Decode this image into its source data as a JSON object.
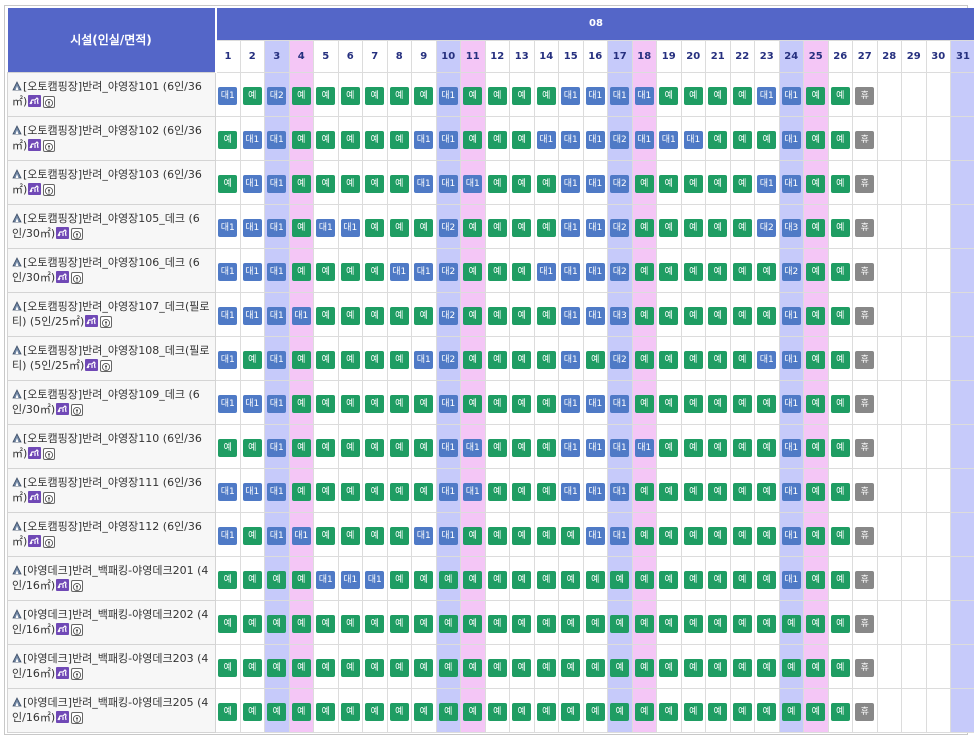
{
  "header": {
    "facility_title": "시설(인실/면적)",
    "month": "08"
  },
  "days": [
    "1",
    "2",
    "3",
    "4",
    "5",
    "6",
    "7",
    "8",
    "9",
    "10",
    "11",
    "12",
    "13",
    "14",
    "15",
    "16",
    "17",
    "18",
    "19",
    "20",
    "21",
    "22",
    "23",
    "24",
    "25",
    "26",
    "27",
    "28",
    "29",
    "30",
    "31"
  ],
  "day_types": [
    "n",
    "n",
    "sat",
    "sun",
    "n",
    "n",
    "n",
    "n",
    "n",
    "sat",
    "sun",
    "n",
    "n",
    "n",
    "n",
    "n",
    "sat",
    "sun",
    "n",
    "n",
    "n",
    "n",
    "n",
    "sat",
    "sun",
    "n",
    "n",
    "n",
    "n",
    "n",
    "sat"
  ],
  "colors": {
    "header": "#5466c8",
    "saturday": "#c6cafa",
    "sunday": "#f4c6f6",
    "available": "#1f9d63",
    "waitlist": "#4f7ac6",
    "closed": "#888888"
  },
  "icons": {
    "facility": "tent-icon",
    "pet": "pet-allowed-icon",
    "location": "map-pin-icon"
  },
  "rows": [
    {
      "name": "[오토캠핑장]반려_야영장101 (6인/36㎡)",
      "cells": [
        "대1",
        "예",
        "대2",
        "예",
        "예",
        "예",
        "예",
        "예",
        "예",
        "대1",
        "예",
        "예",
        "예",
        "예",
        "대1",
        "대1",
        "대1",
        "대1",
        "예",
        "예",
        "예",
        "예",
        "대1",
        "대1",
        "예",
        "예",
        "휴",
        "",
        "",
        "",
        ""
      ]
    },
    {
      "name": "[오토캠핑장]반려_야영장102 (6인/36㎡)",
      "cells": [
        "예",
        "대1",
        "대1",
        "예",
        "예",
        "예",
        "예",
        "예",
        "대1",
        "대1",
        "예",
        "예",
        "예",
        "대1",
        "대1",
        "대1",
        "대2",
        "대1",
        "대1",
        "대1",
        "예",
        "예",
        "예",
        "대1",
        "예",
        "예",
        "휴",
        "",
        "",
        "",
        ""
      ]
    },
    {
      "name": "[오토캠핑장]반려_야영장103 (6인/36㎡)",
      "cells": [
        "예",
        "대1",
        "대1",
        "예",
        "예",
        "예",
        "예",
        "예",
        "대1",
        "대1",
        "대1",
        "예",
        "예",
        "예",
        "대1",
        "대1",
        "대2",
        "예",
        "예",
        "예",
        "예",
        "예",
        "대1",
        "대1",
        "예",
        "예",
        "휴",
        "",
        "",
        "",
        ""
      ]
    },
    {
      "name": "[오토캠핑장]반려_야영장105_데크 (6인/30㎡)",
      "cells": [
        "대1",
        "대1",
        "대1",
        "예",
        "대1",
        "대1",
        "예",
        "예",
        "예",
        "대2",
        "예",
        "예",
        "예",
        "예",
        "대1",
        "대1",
        "대2",
        "예",
        "예",
        "예",
        "예",
        "예",
        "대2",
        "대3",
        "예",
        "예",
        "휴",
        "",
        "",
        "",
        ""
      ]
    },
    {
      "name": "[오토캠핑장]반려_야영장106_데크 (6인/30㎡)",
      "cells": [
        "대1",
        "대1",
        "대1",
        "예",
        "예",
        "예",
        "예",
        "대1",
        "대1",
        "대2",
        "예",
        "예",
        "예",
        "대1",
        "대1",
        "대1",
        "대2",
        "예",
        "예",
        "예",
        "예",
        "예",
        "예",
        "대2",
        "예",
        "예",
        "휴",
        "",
        "",
        "",
        ""
      ]
    },
    {
      "name": "[오토캠핑장]반려_야영장107_데크(필로티) (5인/25㎡)",
      "cells": [
        "대1",
        "대1",
        "대1",
        "대1",
        "예",
        "예",
        "예",
        "예",
        "예",
        "대2",
        "예",
        "예",
        "예",
        "예",
        "대1",
        "대1",
        "대3",
        "예",
        "예",
        "예",
        "예",
        "예",
        "예",
        "대1",
        "예",
        "예",
        "휴",
        "",
        "",
        "",
        ""
      ]
    },
    {
      "name": "[오토캠핑장]반려_야영장108_데크(필로티) (5인/25㎡)",
      "cells": [
        "대1",
        "예",
        "대1",
        "예",
        "예",
        "예",
        "예",
        "예",
        "대1",
        "대2",
        "예",
        "예",
        "예",
        "예",
        "대1",
        "예",
        "대2",
        "예",
        "예",
        "예",
        "예",
        "예",
        "대1",
        "대1",
        "예",
        "예",
        "휴",
        "",
        "",
        "",
        ""
      ]
    },
    {
      "name": "[오토캠핑장]반려_야영장109_데크 (6인/30㎡)",
      "cells": [
        "대1",
        "대1",
        "대1",
        "예",
        "예",
        "예",
        "예",
        "예",
        "예",
        "대1",
        "예",
        "예",
        "예",
        "예",
        "대1",
        "대1",
        "대1",
        "예",
        "예",
        "예",
        "예",
        "예",
        "예",
        "대1",
        "예",
        "예",
        "휴",
        "",
        "",
        "",
        ""
      ]
    },
    {
      "name": "[오토캠핑장]반려_야영장110 (6인/36㎡)",
      "cells": [
        "예",
        "예",
        "대1",
        "예",
        "예",
        "예",
        "예",
        "예",
        "예",
        "대1",
        "대1",
        "예",
        "예",
        "예",
        "대1",
        "대1",
        "대1",
        "대1",
        "예",
        "예",
        "예",
        "예",
        "예",
        "대1",
        "예",
        "예",
        "휴",
        "",
        "",
        "",
        ""
      ]
    },
    {
      "name": "[오토캠핑장]반려_야영장111 (6인/36㎡)",
      "cells": [
        "대1",
        "대1",
        "대1",
        "예",
        "예",
        "예",
        "예",
        "예",
        "예",
        "대1",
        "대1",
        "예",
        "예",
        "예",
        "대1",
        "대1",
        "대1",
        "예",
        "예",
        "예",
        "예",
        "예",
        "예",
        "대1",
        "예",
        "예",
        "휴",
        "",
        "",
        "",
        ""
      ]
    },
    {
      "name": "[오토캠핑장]반려_야영장112 (6인/36㎡)",
      "cells": [
        "대1",
        "예",
        "대1",
        "대1",
        "예",
        "예",
        "예",
        "예",
        "대1",
        "대1",
        "예",
        "예",
        "예",
        "예",
        "예",
        "대1",
        "대1",
        "예",
        "예",
        "예",
        "예",
        "예",
        "예",
        "대1",
        "예",
        "예",
        "휴",
        "",
        "",
        "",
        ""
      ]
    },
    {
      "name": "[야영데크]반려_백패킹-야영데크201 (4인/16㎡)",
      "cells": [
        "예",
        "예",
        "예",
        "예",
        "대1",
        "대1",
        "대1",
        "예",
        "예",
        "예",
        "예",
        "예",
        "예",
        "예",
        "예",
        "예",
        "예",
        "예",
        "예",
        "예",
        "예",
        "예",
        "예",
        "대1",
        "예",
        "예",
        "휴",
        "",
        "",
        "",
        ""
      ]
    },
    {
      "name": "[야영데크]반려_백패킹-야영데크202 (4인/16㎡)",
      "cells": [
        "예",
        "예",
        "예",
        "예",
        "예",
        "예",
        "예",
        "예",
        "예",
        "예",
        "예",
        "예",
        "예",
        "예",
        "예",
        "예",
        "예",
        "예",
        "예",
        "예",
        "예",
        "예",
        "예",
        "예",
        "예",
        "예",
        "휴",
        "",
        "",
        "",
        ""
      ]
    },
    {
      "name": "[야영데크]반려_백패킹-야영데크203 (4인/16㎡)",
      "cells": [
        "예",
        "예",
        "예",
        "예",
        "예",
        "예",
        "예",
        "예",
        "예",
        "예",
        "예",
        "예",
        "예",
        "예",
        "예",
        "예",
        "예",
        "예",
        "예",
        "예",
        "예",
        "예",
        "예",
        "예",
        "예",
        "예",
        "휴",
        "",
        "",
        "",
        ""
      ]
    },
    {
      "name": "[야영데크]반려_백패킹-야영데크205 (4인/16㎡)",
      "cells": [
        "예",
        "예",
        "예",
        "예",
        "예",
        "예",
        "예",
        "예",
        "예",
        "예",
        "예",
        "예",
        "예",
        "예",
        "예",
        "예",
        "예",
        "예",
        "예",
        "예",
        "예",
        "예",
        "예",
        "예",
        "예",
        "예",
        "휴",
        "",
        "",
        "",
        ""
      ]
    }
  ]
}
